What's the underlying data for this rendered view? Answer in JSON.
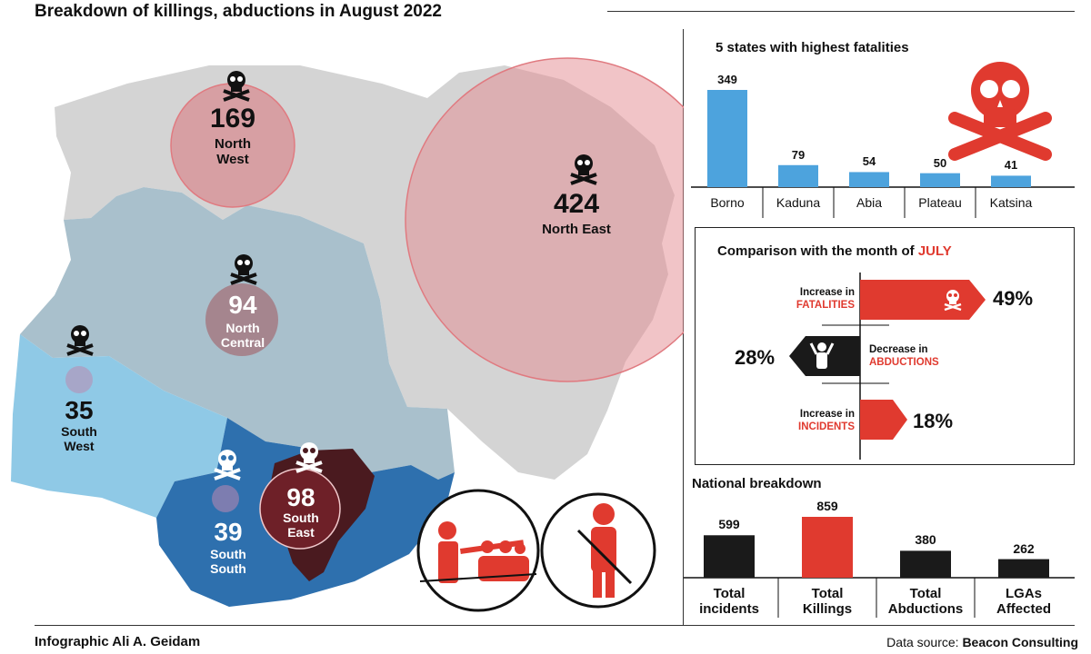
{
  "title": "Breakdown of killings, abductions in August 2022",
  "credit": "Infographic Ali A. Geidam",
  "source_label": "Data source:",
  "source_name": "Beacon Consulting",
  "map": {
    "regions": [
      {
        "id": "north-west",
        "value": "169",
        "name_line1": "North",
        "name_line2": "West"
      },
      {
        "id": "north-east",
        "value": "424",
        "name_line1": "North East",
        "name_line2": ""
      },
      {
        "id": "north-central",
        "value": "94",
        "name_line1": "North",
        "name_line2": "Central"
      },
      {
        "id": "south-west",
        "value": "35",
        "name_line1": "South",
        "name_line2": "West"
      },
      {
        "id": "south-south",
        "value": "39",
        "name_line1": "South",
        "name_line2": "South"
      },
      {
        "id": "south-east",
        "value": "98",
        "name_line1": "South",
        "name_line2": "East"
      }
    ],
    "colors": {
      "north": "#d4d4d4",
      "north_central": "#a9c0cc",
      "south_west": "#8fc9e6",
      "south_south": "#2e70ae",
      "south_east": "#4a1a1f",
      "circle": "#e48a8f",
      "accent_red": "#e03a2f"
    }
  },
  "comparison": {
    "title_prefix": "Comparison with the month of",
    "title_month": "JULY",
    "items": [
      {
        "id": "fatalities",
        "line1": "Increase in",
        "line2": "FATALITIES",
        "pct": "49%"
      },
      {
        "id": "abductions",
        "line1": "Decrease in",
        "line2": "ABDUCTIONS",
        "pct": "28%"
      },
      {
        "id": "incidents",
        "line1": "Increase in",
        "line2": "INCIDENTS",
        "pct": "18%"
      }
    ]
  },
  "chart_data": [
    {
      "type": "bar",
      "title": "5 states with highest fatalities",
      "categories": [
        "Borno",
        "Kaduna",
        "Abia",
        "Plateau",
        "Katsina"
      ],
      "values": [
        349,
        79,
        54,
        50,
        41
      ],
      "color": "#4da3dd",
      "ylim": [
        0,
        349
      ]
    },
    {
      "type": "bar",
      "title": "National breakdown",
      "categories": [
        "Total incidents",
        "Total Killings",
        "Total Abductions",
        "LGAs Affected"
      ],
      "labels": [
        [
          "Total",
          "incidents"
        ],
        [
          "Total",
          "Killings"
        ],
        [
          "Total",
          "Abductions"
        ],
        [
          "LGAs",
          "Affected"
        ]
      ],
      "values": [
        599,
        859,
        380,
        262
      ],
      "colors": [
        "#1a1a1a",
        "#e03a2f",
        "#1a1a1a",
        "#1a1a1a"
      ],
      "ylim": [
        0,
        859
      ]
    }
  ]
}
